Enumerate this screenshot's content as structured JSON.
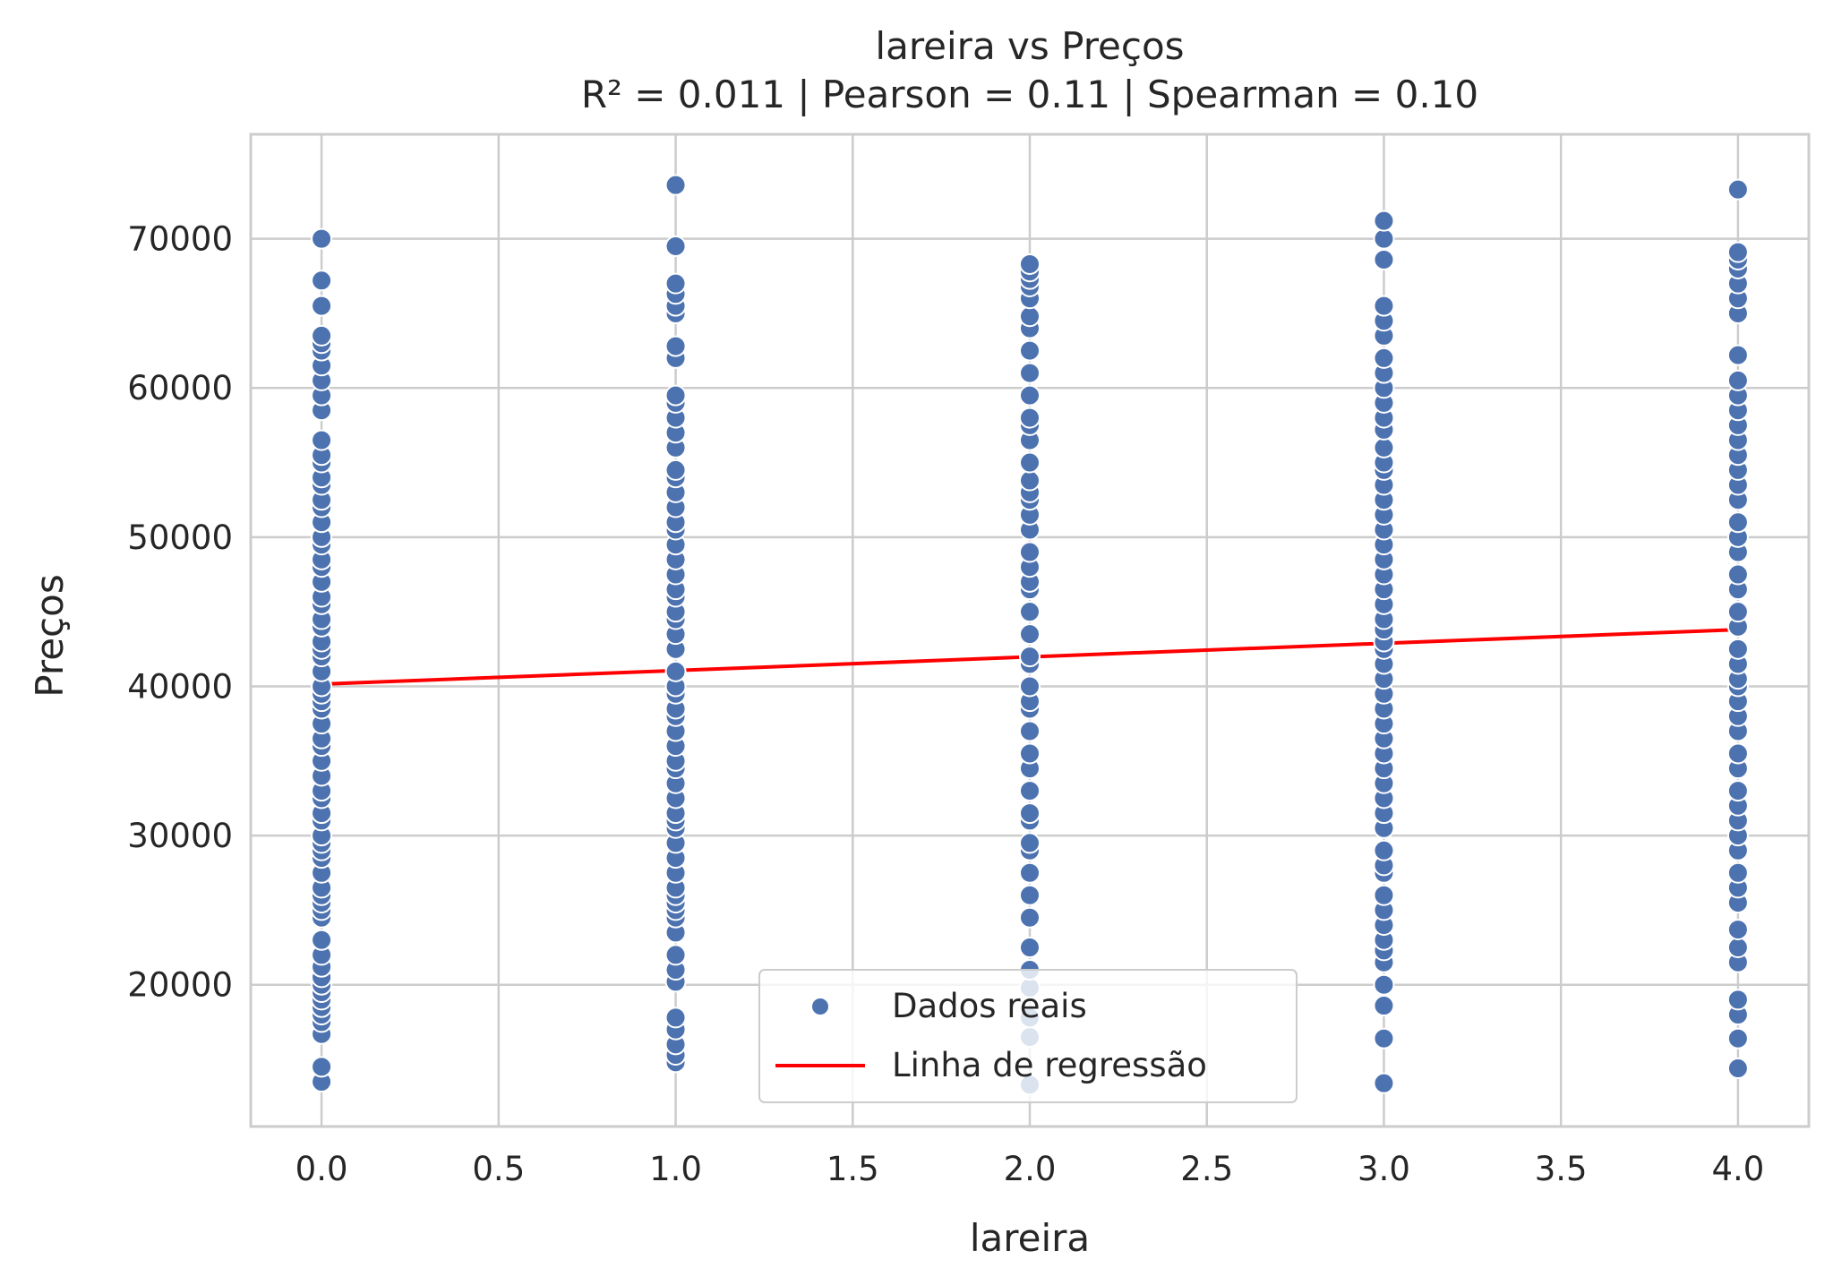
{
  "chart_data": {
    "type": "scatter",
    "title": "lareira vs Preços",
    "subtitle": "R² = 0.011 | Pearson = 0.11 | Spearman = 0.10",
    "xlabel": "lareira",
    "ylabel": "Preços",
    "xlim": [
      -0.2,
      4.2
    ],
    "ylim": [
      10500,
      77000
    ],
    "x_ticks": [
      0.0,
      0.5,
      1.0,
      1.5,
      2.0,
      2.5,
      3.0,
      3.5,
      4.0
    ],
    "x_tick_labels": [
      "0.0",
      "0.5",
      "1.0",
      "1.5",
      "2.0",
      "2.5",
      "3.0",
      "3.5",
      "4.0"
    ],
    "y_ticks": [
      20000,
      30000,
      40000,
      50000,
      60000,
      70000
    ],
    "y_tick_labels": [
      "20000",
      "30000",
      "40000",
      "50000",
      "60000",
      "70000"
    ],
    "grid": true,
    "legend_position": "bottom-center",
    "series": [
      {
        "name": "Dados reais",
        "kind": "scatter",
        "color": "#4c72b0",
        "points": [
          {
            "x": 0,
            "ys": [
              13500,
              14500,
              16700,
              17500,
              18000,
              18500,
              19000,
              19500,
              20000,
              20500,
              21200,
              22000,
              23000,
              24500,
              25000,
              25500,
              26000,
              26500,
              27500,
              28500,
              29000,
              29500,
              30000,
              31000,
              31500,
              32500,
              33000,
              34000,
              35000,
              36000,
              36500,
              37500,
              38500,
              39000,
              39500,
              40000,
              41000,
              42000,
              42500,
              43000,
              44000,
              44500,
              45500,
              46000,
              47000,
              48000,
              48500,
              49500,
              50000,
              51000,
              52000,
              52500,
              53500,
              54000,
              55000,
              55500,
              56500,
              58500,
              59500,
              60500,
              61500,
              62500,
              63000,
              63500,
              65500,
              67200,
              70000
            ]
          },
          {
            "x": 1,
            "ys": [
              14800,
              15300,
              16000,
              17000,
              17800,
              20200,
              21000,
              22000,
              23500,
              24500,
              25000,
              25500,
              26000,
              26500,
              27500,
              28500,
              29500,
              30500,
              31000,
              31500,
              32500,
              33500,
              34500,
              35000,
              36000,
              37000,
              38000,
              38500,
              39500,
              40000,
              41000,
              42500,
              43500,
              44500,
              45000,
              46000,
              46500,
              47500,
              48500,
              49500,
              50500,
              51000,
              52000,
              53000,
              54000,
              54500,
              56000,
              57000,
              58000,
              59000,
              59500,
              62000,
              62800,
              65000,
              65500,
              66300,
              67000,
              69500,
              73600
            ]
          },
          {
            "x": 2,
            "ys": [
              13300,
              16500,
              17800,
              19800,
              21000,
              22500,
              24500,
              26000,
              27500,
              29000,
              29500,
              31000,
              31500,
              33000,
              34500,
              35500,
              37000,
              38500,
              39000,
              40000,
              41500,
              42000,
              43500,
              45000,
              46500,
              47000,
              48000,
              49000,
              50500,
              51500,
              52500,
              53000,
              53800,
              55000,
              56500,
              57500,
              58000,
              59500,
              61000,
              62500,
              64000,
              64800,
              66000,
              66800,
              67300,
              67800,
              68300
            ]
          },
          {
            "x": 3,
            "ys": [
              13400,
              16400,
              18600,
              20000,
              21500,
              22300,
              23000,
              24000,
              25000,
              26000,
              27500,
              28000,
              29000,
              30500,
              31500,
              32500,
              33500,
              34500,
              35500,
              36500,
              37500,
              38500,
              39500,
              40500,
              41500,
              42500,
              43000,
              43800,
              44500,
              45500,
              46500,
              47500,
              48500,
              49500,
              50500,
              51500,
              52500,
              53500,
              54500,
              55000,
              56000,
              57200,
              58000,
              59000,
              60000,
              61000,
              62000,
              63500,
              64500,
              65500,
              68600,
              70000,
              71200
            ]
          },
          {
            "x": 4,
            "ys": [
              14400,
              16400,
              18000,
              19000,
              21500,
              22500,
              23700,
              25500,
              26500,
              27500,
              29000,
              30000,
              31000,
              32000,
              33000,
              34500,
              35500,
              37000,
              38000,
              39000,
              40000,
              40500,
              41500,
              42500,
              44000,
              45000,
              46500,
              47500,
              49000,
              50000,
              51000,
              52500,
              53500,
              54500,
              55500,
              56500,
              57500,
              58500,
              59500,
              60500,
              62200,
              65000,
              66000,
              67000,
              68000,
              68600,
              69100,
              73300
            ]
          }
        ]
      },
      {
        "name": "Linha de regressão",
        "kind": "line",
        "color": "#ff0000",
        "x": [
          0,
          4
        ],
        "y": [
          40150,
          43800
        ]
      }
    ]
  }
}
